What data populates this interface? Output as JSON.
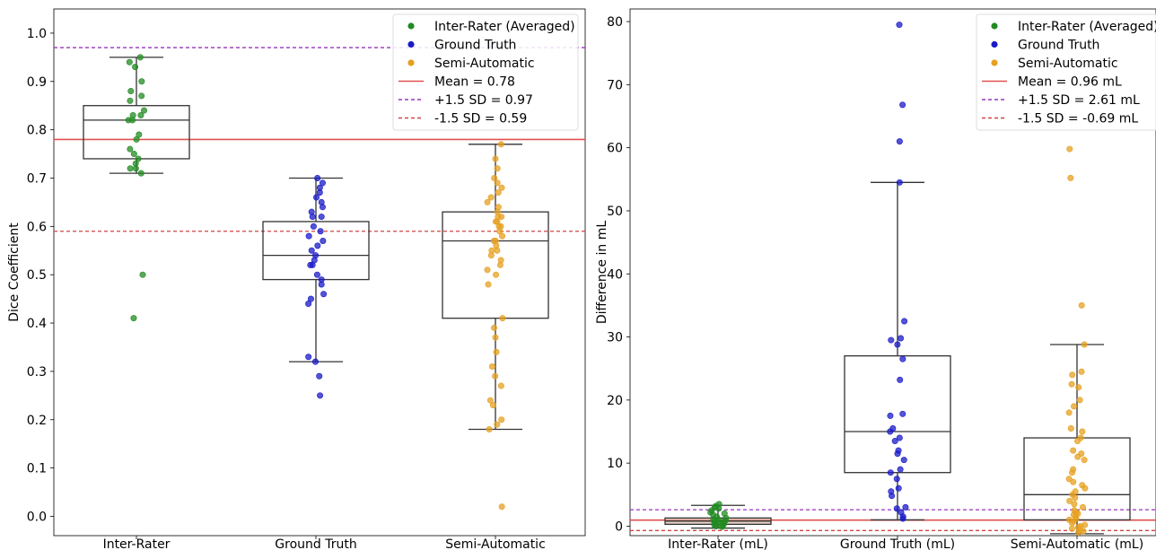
{
  "colors": {
    "inter": "#228b22",
    "gt": "#1a1ac8",
    "semi": "#e6a020",
    "mean": "#e05050",
    "sd_plus": "#9933bb",
    "sd_minus": "#d04545",
    "box": "#333333"
  },
  "chart_data": [
    {
      "type": "box",
      "title": "",
      "xlabel": "",
      "ylabel": "Dice Coefficient",
      "ylim": [
        -0.04,
        1.05
      ],
      "yticks": [
        0.0,
        0.1,
        0.2,
        0.3,
        0.4,
        0.5,
        0.6,
        0.7,
        0.8,
        0.9,
        1.0
      ],
      "ytick_labels": [
        "0.0",
        "0.1",
        "0.2",
        "0.3",
        "0.4",
        "0.5",
        "0.6",
        "0.7",
        "0.8",
        "0.9",
        "1.0"
      ],
      "categories": [
        "Inter-Rater",
        "Ground Truth",
        "Semi-Automatic"
      ],
      "boxes": [
        {
          "whisker_low": 0.71,
          "q1": 0.74,
          "median": 0.82,
          "q3": 0.85,
          "whisker_high": 0.95
        },
        {
          "whisker_low": 0.32,
          "q1": 0.49,
          "median": 0.54,
          "q3": 0.61,
          "whisker_high": 0.7
        },
        {
          "whisker_low": 0.18,
          "q1": 0.41,
          "median": 0.57,
          "q3": 0.63,
          "whisker_high": 0.77
        }
      ],
      "series": [
        {
          "name": "Inter-Rater (Averaged)",
          "color_key": "inter",
          "points": [
            0.95,
            0.94,
            0.93,
            0.9,
            0.88,
            0.87,
            0.86,
            0.84,
            0.83,
            0.83,
            0.82,
            0.82,
            0.79,
            0.78,
            0.76,
            0.75,
            0.74,
            0.73,
            0.72,
            0.72,
            0.71,
            0.5,
            0.41
          ]
        },
        {
          "name": "Ground Truth",
          "color_key": "gt",
          "points": [
            0.7,
            0.69,
            0.68,
            0.67,
            0.66,
            0.65,
            0.64,
            0.63,
            0.62,
            0.62,
            0.6,
            0.59,
            0.58,
            0.57,
            0.56,
            0.55,
            0.54,
            0.53,
            0.52,
            0.52,
            0.5,
            0.49,
            0.48,
            0.46,
            0.45,
            0.44,
            0.33,
            0.32,
            0.29,
            0.25
          ]
        },
        {
          "name": "Semi-Automatic",
          "color_key": "semi",
          "points": [
            0.77,
            0.74,
            0.72,
            0.7,
            0.69,
            0.68,
            0.67,
            0.66,
            0.65,
            0.64,
            0.63,
            0.62,
            0.62,
            0.61,
            0.61,
            0.6,
            0.6,
            0.59,
            0.58,
            0.57,
            0.57,
            0.56,
            0.55,
            0.55,
            0.54,
            0.53,
            0.52,
            0.51,
            0.5,
            0.48,
            0.41,
            0.39,
            0.37,
            0.34,
            0.31,
            0.29,
            0.27,
            0.24,
            0.23,
            0.2,
            0.19,
            0.18,
            0.02
          ]
        }
      ],
      "reference_lines": [
        {
          "label": "Mean = 0.78",
          "value": 0.78,
          "style": "solid",
          "color_key": "mean"
        },
        {
          "label": "+1.5 SD = 0.97",
          "value": 0.97,
          "style": "dashed",
          "color_key": "sd_plus"
        },
        {
          "label": "-1.5 SD = 0.59",
          "value": 0.59,
          "style": "dashed",
          "color_key": "sd_minus"
        }
      ],
      "legend": {
        "placement": "top-right"
      },
      "grid": false
    },
    {
      "type": "box",
      "title": "",
      "xlabel": "",
      "ylabel": "Difference in mL",
      "ylim": [
        -1.5,
        82
      ],
      "yticks": [
        0,
        10,
        20,
        30,
        40,
        50,
        60,
        70,
        80
      ],
      "ytick_labels": [
        "0",
        "10",
        "20",
        "30",
        "40",
        "50",
        "60",
        "70",
        "80"
      ],
      "categories": [
        "Inter-Rater (mL)",
        "Ground Truth (mL)",
        "Semi-Automatic (mL)"
      ],
      "boxes": [
        {
          "whisker_low": -0.3,
          "q1": 0.3,
          "median": 0.8,
          "q3": 1.3,
          "whisker_high": 3.3
        },
        {
          "whisker_low": 1.0,
          "q1": 8.5,
          "median": 15.0,
          "q3": 27.0,
          "whisker_high": 54.5
        },
        {
          "whisker_low": -1.2,
          "q1": 1.0,
          "median": 5.0,
          "q3": 14.0,
          "whisker_high": 28.8
        }
      ],
      "series": [
        {
          "name": "Inter-Rater (Averaged)",
          "color_key": "inter",
          "points": [
            3.5,
            3.2,
            3.0,
            2.8,
            2.5,
            2.2,
            2.0,
            1.8,
            1.5,
            1.3,
            1.1,
            1.0,
            0.9,
            0.8,
            0.7,
            0.6,
            0.5,
            0.4,
            0.3,
            0.2,
            0.1,
            0.0,
            -0.1
          ]
        },
        {
          "name": "Ground Truth",
          "color_key": "gt",
          "points": [
            79.5,
            66.8,
            61.0,
            54.5,
            32.5,
            29.8,
            29.5,
            28.8,
            26.5,
            23.2,
            17.8,
            17.5,
            15.5,
            15.0,
            14.0,
            13.5,
            12.0,
            11.5,
            10.5,
            9.0,
            8.5,
            7.5,
            6.0,
            5.5,
            4.8,
            3.0,
            2.8,
            2.2,
            1.5,
            1.2
          ]
        },
        {
          "name": "Semi-Automatic",
          "color_key": "semi",
          "points": [
            59.8,
            55.2,
            35.0,
            28.8,
            24.5,
            24.0,
            22.5,
            22.0,
            20.0,
            19.0,
            18.0,
            15.5,
            15.0,
            14.0,
            13.5,
            12.0,
            11.5,
            11.0,
            10.5,
            9.0,
            8.5,
            7.5,
            7.0,
            6.5,
            6.0,
            5.5,
            5.0,
            4.5,
            4.0,
            3.5,
            3.0,
            2.5,
            2.2,
            2.0,
            1.8,
            1.5,
            1.2,
            1.0,
            0.8,
            0.5,
            0.2,
            0.0,
            -0.2,
            -0.4,
            -0.6,
            -0.8,
            -1.0
          ]
        }
      ],
      "reference_lines": [
        {
          "label": "Mean = 0.96 mL",
          "value": 0.96,
          "style": "solid",
          "color_key": "mean"
        },
        {
          "label": "+1.5 SD = 2.61 mL",
          "value": 2.61,
          "style": "dashed",
          "color_key": "sd_plus"
        },
        {
          "label": "-1.5 SD = -0.69 mL",
          "value": -0.69,
          "style": "dashed",
          "color_key": "sd_minus"
        }
      ],
      "legend": {
        "placement": "top-right"
      },
      "grid": false
    }
  ]
}
